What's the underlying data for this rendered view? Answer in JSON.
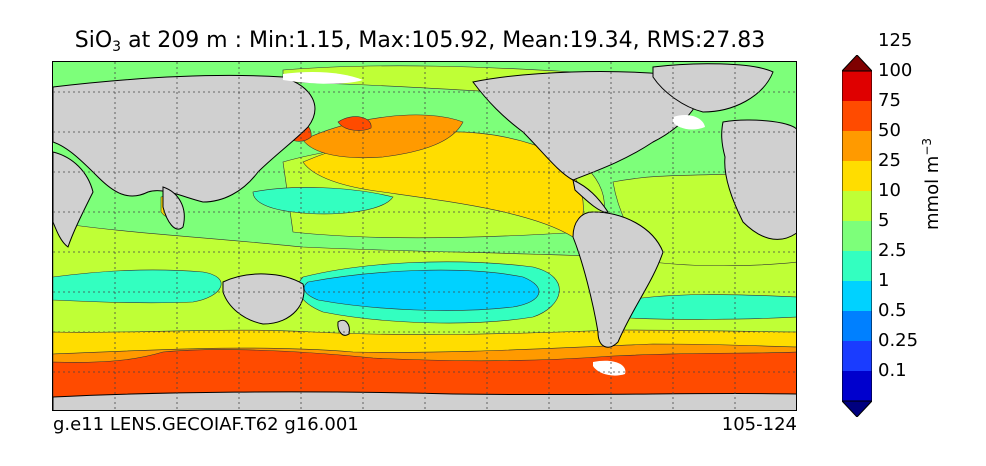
{
  "title": {
    "species": "SiO",
    "subscript": "3",
    "rest": "at 209 m : Min:1.15, Max:105.92, Mean:19.34, RMS:27.83"
  },
  "footer": {
    "case": "g.e11 LENS.GECOIAF.T62 g16.001",
    "years": "105-124"
  },
  "colorbar": {
    "units_base": "mmol m",
    "units_exp": "−3",
    "levels": [
      "0.1",
      "0.25",
      "0.5",
      "1",
      "2.5",
      "5",
      "10",
      "25",
      "50",
      "75",
      "100",
      "125"
    ],
    "colors": [
      "#00007f",
      "#0000cd",
      "#1a3cff",
      "#0080ff",
      "#00d2ff",
      "#33ffc0",
      "#7dff7a",
      "#bfff36",
      "#ffdd00",
      "#ff9a00",
      "#ff4b00",
      "#df0000",
      "#7f0000"
    ]
  },
  "map": {
    "land_color": "#d0d0d0",
    "missing_color": "#ffffff",
    "base_ocean_color": "#7dff7a"
  }
}
